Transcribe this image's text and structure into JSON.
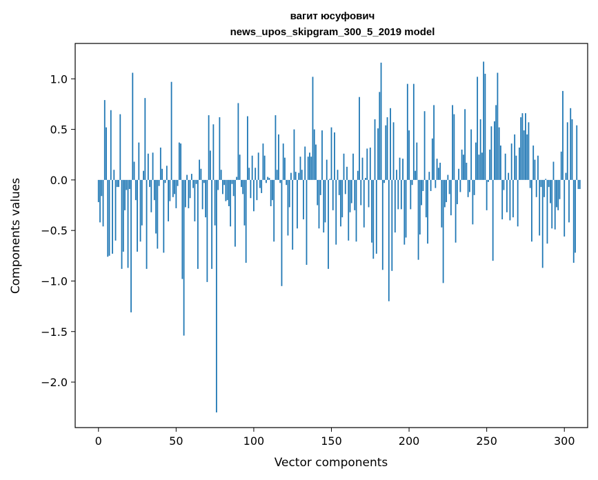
{
  "chart_data": {
    "type": "bar",
    "title": "вагит юсуфович",
    "subtitle": "news_upos_skipgram_300_5_2019 model",
    "xlabel": "Vector components",
    "ylabel": "Components values",
    "xlim": [
      -15,
      315
    ],
    "ylim": [
      -2.45,
      1.35
    ],
    "xticks": [
      0,
      50,
      100,
      150,
      200,
      250,
      300
    ],
    "yticks": [
      -2.0,
      -1.5,
      -1.0,
      -0.5,
      0.0,
      0.5,
      1.0
    ],
    "ytick_labels": [
      "−2.0",
      "−1.5",
      "−1.0",
      "−0.5",
      "0.0",
      "0.5",
      "1.0"
    ],
    "bar_color": "#1f77b4",
    "grid": false,
    "legend": "none",
    "values": [
      -0.22,
      -0.42,
      -0.16,
      -0.46,
      0.79,
      0.52,
      -0.76,
      -0.75,
      0.69,
      -0.73,
      0.1,
      -0.6,
      -0.07,
      -0.07,
      0.65,
      -0.88,
      -0.71,
      -0.3,
      -0.1,
      -0.87,
      -0.09,
      -1.31,
      1.06,
      0.18,
      -0.2,
      -0.71,
      0.37,
      -0.61,
      -0.45,
      0.09,
      0.81,
      -0.88,
      0.26,
      -0.07,
      -0.32,
      0.27,
      -0.2,
      -0.53,
      -0.68,
      -0.06,
      0.32,
      0.11,
      -0.72,
      -0.03,
      0.14,
      -0.41,
      -0.21,
      0.97,
      -0.17,
      -0.14,
      -0.28,
      -0.06,
      0.37,
      0.36,
      -0.98,
      -1.54,
      -0.27,
      0.05,
      -0.28,
      -0.18,
      0.06,
      -0.08,
      -0.41,
      -0.04,
      -0.88,
      0.2,
      0.11,
      -0.29,
      -0.03,
      -0.37,
      -1.01,
      0.64,
      0.29,
      -0.88,
      0.55,
      -0.45,
      -2.3,
      -0.1,
      0.62,
      0.1,
      -0.14,
      -0.05,
      -0.21,
      -0.2,
      -0.26,
      -0.46,
      -0.04,
      -0.16,
      -0.66,
      0.03,
      0.76,
      0.25,
      -0.07,
      -0.14,
      -0.45,
      -0.82,
      0.63,
      0.12,
      -0.18,
      0.24,
      -0.31,
      0.12,
      -0.2,
      0.27,
      -0.08,
      -0.13,
      0.36,
      0.24,
      -0.03,
      0.03,
      0.02,
      -0.26,
      -0.2,
      -0.61,
      0.64,
      0.1,
      0.45,
      -0.03,
      -1.05,
      0.36,
      0.22,
      -0.05,
      -0.55,
      -0.27,
      0.07,
      -0.69,
      0.5,
      0.08,
      -0.48,
      0.07,
      0.23,
      0.1,
      -0.39,
      0.33,
      -0.84,
      0.23,
      0.27,
      0.23,
      1.02,
      0.5,
      0.35,
      -0.25,
      -0.48,
      -0.15,
      0.49,
      -0.52,
      -0.42,
      0.2,
      -0.88,
      0.01,
      0.52,
      -0.3,
      0.47,
      -0.64,
      0.1,
      -0.15,
      -0.46,
      -0.37,
      0.26,
      -0.14,
      0.13,
      -0.6,
      -0.32,
      -0.23,
      0.26,
      -0.3,
      -0.61,
      0.09,
      0.82,
      -0.25,
      0.22,
      -0.47,
      0.02,
      0.31,
      -0.27,
      0.32,
      -0.62,
      -0.78,
      0.6,
      -0.73,
      0.51,
      0.87,
      1.16,
      -0.89,
      -0.03,
      0.54,
      0.62,
      -1.2,
      0.71,
      -0.9,
      0.57,
      -0.52,
      0.1,
      -0.29,
      0.22,
      -0.29,
      0.21,
      -0.64,
      -0.57,
      0.95,
      0.49,
      -0.29,
      -0.05,
      0.95,
      0.09,
      0.37,
      -0.79,
      -0.54,
      -0.25,
      -0.11,
      0.68,
      -0.37,
      -0.63,
      0.08,
      -0.11,
      0.41,
      0.74,
      -0.08,
      0.21,
      0.12,
      0.17,
      -0.47,
      -1.02,
      -0.27,
      -0.22,
      0.05,
      -0.14,
      -0.35,
      0.74,
      0.65,
      -0.62,
      -0.24,
      0.11,
      -0.12,
      0.3,
      0.25,
      0.7,
      0.17,
      -0.17,
      -0.12,
      0.5,
      -0.44,
      -0.15,
      0.37,
      1.02,
      0.25,
      0.6,
      0.27,
      1.17,
      1.05,
      -0.3,
      -0.02,
      0.3,
      0.53,
      -0.8,
      0.58,
      0.74,
      1.06,
      0.52,
      0.34,
      -0.39,
      -0.1,
      0.26,
      -0.32,
      0.07,
      -0.4,
      0.36,
      -0.37,
      0.45,
      0.24,
      -0.46,
      0.32,
      0.62,
      0.66,
      0.49,
      0.66,
      0.45,
      0.57,
      -0.08,
      -0.61,
      0.34,
      0.2,
      -0.17,
      0.24,
      -0.55,
      -0.07,
      -0.87,
      -0.17,
      0.01,
      -0.63,
      -0.07,
      -0.23,
      -0.48,
      0.18,
      -0.49,
      -0.27,
      -0.3,
      -0.19,
      0.28,
      0.88,
      -0.56,
      0.07,
      0.57,
      -0.42,
      0.71,
      0.6,
      -0.82,
      -0.72,
      0.54,
      -0.09,
      -0.09
    ]
  }
}
